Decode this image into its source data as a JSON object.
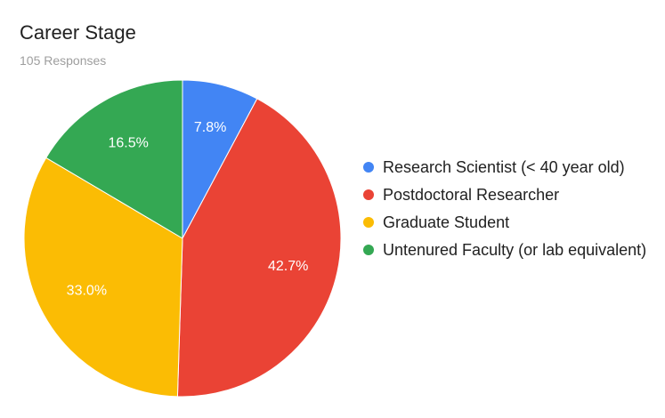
{
  "chart_data": {
    "type": "pie",
    "title": "Career Stage",
    "subtitle": "105 Responses",
    "slices": [
      {
        "label": "Research Scientist (< 40 year old)",
        "value": 7.8,
        "value_label": "7.8%",
        "color": "#4285f4"
      },
      {
        "label": "Postdoctoral Researcher",
        "value": 42.7,
        "value_label": "42.7%",
        "color": "#ea4335"
      },
      {
        "label": "Graduate Student",
        "value": 33.0,
        "value_label": "33.0%",
        "color": "#fbbc04"
      },
      {
        "label": "Untenured Faculty (or lab equivalent)",
        "value": 16.5,
        "value_label": "16.5%",
        "color": "#34a853"
      }
    ],
    "legend_position": "right"
  }
}
